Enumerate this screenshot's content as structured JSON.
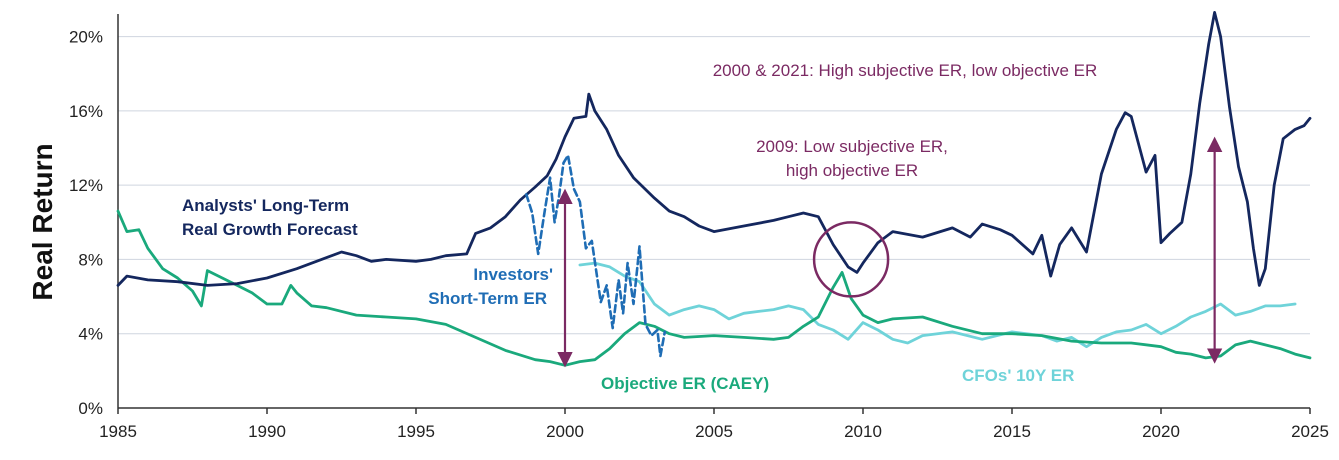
{
  "chart_data": {
    "type": "line",
    "ylabel": "Real Return",
    "xlim": [
      1985,
      2025
    ],
    "ylim": [
      0,
      21
    ],
    "x_ticks": [
      "1985",
      "1990",
      "1995",
      "2000",
      "2005",
      "2010",
      "2015",
      "2020",
      "2025"
    ],
    "y_ticks": [
      "0%",
      "4%",
      "8%",
      "12%",
      "16%",
      "20%"
    ],
    "grid": "horizontal",
    "colors": {
      "analysts": "#14275e",
      "investors": "#1f6db5",
      "caey": "#1aa97c",
      "cfo": "#6fd3d9",
      "annotation": "#7b2a63"
    },
    "series": [
      {
        "key": "analysts",
        "name": "Analysts' Long-Term Real Growth Forecast",
        "points": [
          [
            1985,
            6.6
          ],
          [
            1985.3,
            7.1
          ],
          [
            1986,
            6.9
          ],
          [
            1987,
            6.8
          ],
          [
            1988,
            6.6
          ],
          [
            1989,
            6.7
          ],
          [
            1990,
            7.0
          ],
          [
            1991,
            7.5
          ],
          [
            1992,
            8.1
          ],
          [
            1992.5,
            8.4
          ],
          [
            1993,
            8.2
          ],
          [
            1993.5,
            7.9
          ],
          [
            1994,
            8.0
          ],
          [
            1995,
            7.9
          ],
          [
            1995.5,
            8.0
          ],
          [
            1996,
            8.2
          ],
          [
            1996.7,
            8.3
          ],
          [
            1997,
            9.4
          ],
          [
            1997.5,
            9.7
          ],
          [
            1998,
            10.3
          ],
          [
            1998.5,
            11.2
          ],
          [
            1999,
            11.9
          ],
          [
            1999.4,
            12.5
          ],
          [
            1999.7,
            13.4
          ],
          [
            2000,
            14.6
          ],
          [
            2000.3,
            15.6
          ],
          [
            2000.7,
            15.7
          ],
          [
            2000.8,
            16.9
          ],
          [
            2001,
            16.0
          ],
          [
            2001.4,
            15.0
          ],
          [
            2001.8,
            13.6
          ],
          [
            2002.3,
            12.4
          ],
          [
            2003,
            11.3
          ],
          [
            2003.5,
            10.6
          ],
          [
            2004,
            10.3
          ],
          [
            2004.5,
            9.8
          ],
          [
            2005,
            9.5
          ],
          [
            2006,
            9.8
          ],
          [
            2007,
            10.1
          ],
          [
            2007.5,
            10.3
          ],
          [
            2008,
            10.5
          ],
          [
            2008.5,
            10.3
          ],
          [
            2009,
            8.8
          ],
          [
            2009.5,
            7.6
          ],
          [
            2009.8,
            7.3
          ],
          [
            2010,
            7.8
          ],
          [
            2010.5,
            8.9
          ],
          [
            2011,
            9.5
          ],
          [
            2012,
            9.2
          ],
          [
            2013,
            9.7
          ],
          [
            2013.6,
            9.2
          ],
          [
            2014,
            9.9
          ],
          [
            2014.6,
            9.6
          ],
          [
            2015,
            9.3
          ],
          [
            2015.7,
            8.3
          ],
          [
            2016,
            9.3
          ],
          [
            2016.3,
            7.1
          ],
          [
            2016.6,
            8.8
          ],
          [
            2017,
            9.7
          ],
          [
            2017.5,
            8.4
          ],
          [
            2018,
            12.6
          ],
          [
            2018.5,
            15.0
          ],
          [
            2018.8,
            15.9
          ],
          [
            2019,
            15.7
          ],
          [
            2019.5,
            12.7
          ],
          [
            2019.8,
            13.6
          ],
          [
            2020,
            8.9
          ],
          [
            2020.3,
            9.4
          ],
          [
            2020.7,
            10.0
          ],
          [
            2021,
            12.6
          ],
          [
            2021.3,
            16.4
          ],
          [
            2021.6,
            19.6
          ],
          [
            2021.8,
            21.3
          ],
          [
            2022,
            20.0
          ],
          [
            2022.3,
            16.2
          ],
          [
            2022.6,
            13.0
          ],
          [
            2022.9,
            11.1
          ],
          [
            2023.1,
            8.6
          ],
          [
            2023.3,
            6.6
          ],
          [
            2023.5,
            7.5
          ],
          [
            2023.8,
            12.0
          ],
          [
            2024.1,
            14.5
          ],
          [
            2024.5,
            15.0
          ],
          [
            2024.8,
            15.2
          ],
          [
            2025,
            15.6
          ]
        ]
      },
      {
        "key": "investors",
        "name": "Investors' Short-Term ER",
        "dashed": true,
        "points": [
          [
            1998.7,
            11.5
          ],
          [
            1998.9,
            10.5
          ],
          [
            1999.1,
            8.3
          ],
          [
            1999.3,
            10.4
          ],
          [
            1999.5,
            12.4
          ],
          [
            1999.65,
            10.0
          ],
          [
            1999.8,
            11.4
          ],
          [
            1999.95,
            13.2
          ],
          [
            2000.1,
            13.6
          ],
          [
            2000.3,
            11.8
          ],
          [
            2000.5,
            11.1
          ],
          [
            2000.7,
            8.6
          ],
          [
            2000.9,
            9.0
          ],
          [
            2001.2,
            5.7
          ],
          [
            2001.4,
            6.6
          ],
          [
            2001.6,
            4.3
          ],
          [
            2001.8,
            6.9
          ],
          [
            2001.95,
            5.1
          ],
          [
            2002.1,
            7.8
          ],
          [
            2002.3,
            5.6
          ],
          [
            2002.5,
            8.7
          ],
          [
            2002.7,
            4.5
          ],
          [
            2002.9,
            3.9
          ],
          [
            2003.1,
            4.2
          ],
          [
            2003.2,
            2.8
          ],
          [
            2003.35,
            4.1
          ]
        ]
      },
      {
        "key": "caey",
        "name": "Objective ER (CAEY)",
        "points": [
          [
            1985,
            10.6
          ],
          [
            1985.3,
            9.5
          ],
          [
            1985.7,
            9.6
          ],
          [
            1986,
            8.6
          ],
          [
            1986.5,
            7.5
          ],
          [
            1987,
            7.0
          ],
          [
            1987.5,
            6.3
          ],
          [
            1987.8,
            5.5
          ],
          [
            1988,
            7.4
          ],
          [
            1988.5,
            7.0
          ],
          [
            1989,
            6.6
          ],
          [
            1989.5,
            6.2
          ],
          [
            1990,
            5.6
          ],
          [
            1990.5,
            5.6
          ],
          [
            1990.8,
            6.6
          ],
          [
            1991,
            6.2
          ],
          [
            1991.5,
            5.5
          ],
          [
            1992,
            5.4
          ],
          [
            1993,
            5.0
          ],
          [
            1994,
            4.9
          ],
          [
            1995,
            4.8
          ],
          [
            1996,
            4.5
          ],
          [
            1997,
            3.8
          ],
          [
            1998,
            3.1
          ],
          [
            1999,
            2.6
          ],
          [
            1999.5,
            2.5
          ],
          [
            2000,
            2.3
          ],
          [
            2000.5,
            2.5
          ],
          [
            2001,
            2.6
          ],
          [
            2001.5,
            3.2
          ],
          [
            2002,
            4.0
          ],
          [
            2002.5,
            4.6
          ],
          [
            2003,
            4.4
          ],
          [
            2003.5,
            4.0
          ],
          [
            2004,
            3.8
          ],
          [
            2005,
            3.9
          ],
          [
            2006,
            3.8
          ],
          [
            2007,
            3.7
          ],
          [
            2007.5,
            3.8
          ],
          [
            2008,
            4.4
          ],
          [
            2008.5,
            4.9
          ],
          [
            2009,
            6.5
          ],
          [
            2009.3,
            7.3
          ],
          [
            2009.6,
            5.9
          ],
          [
            2010,
            5.0
          ],
          [
            2010.5,
            4.6
          ],
          [
            2011,
            4.8
          ],
          [
            2012,
            4.9
          ],
          [
            2013,
            4.4
          ],
          [
            2014,
            4.0
          ],
          [
            2015,
            4.0
          ],
          [
            2016,
            3.9
          ],
          [
            2017,
            3.6
          ],
          [
            2018,
            3.5
          ],
          [
            2019,
            3.5
          ],
          [
            2020,
            3.3
          ],
          [
            2020.5,
            3.0
          ],
          [
            2021,
            2.9
          ],
          [
            2021.5,
            2.7
          ],
          [
            2022,
            2.8
          ],
          [
            2022.5,
            3.4
          ],
          [
            2023,
            3.6
          ],
          [
            2023.5,
            3.4
          ],
          [
            2024,
            3.2
          ],
          [
            2024.5,
            2.9
          ],
          [
            2025,
            2.7
          ]
        ]
      },
      {
        "key": "cfo",
        "name": "CFOs' 10Y ER",
        "points": [
          [
            2000.5,
            7.7
          ],
          [
            2001,
            7.8
          ],
          [
            2001.5,
            7.6
          ],
          [
            2002,
            7.1
          ],
          [
            2002.5,
            6.8
          ],
          [
            2003,
            5.6
          ],
          [
            2003.5,
            5.0
          ],
          [
            2004,
            5.3
          ],
          [
            2004.5,
            5.5
          ],
          [
            2005,
            5.3
          ],
          [
            2005.5,
            4.8
          ],
          [
            2006,
            5.1
          ],
          [
            2006.5,
            5.2
          ],
          [
            2007,
            5.3
          ],
          [
            2007.5,
            5.5
          ],
          [
            2008,
            5.3
          ],
          [
            2008.5,
            4.5
          ],
          [
            2009,
            4.2
          ],
          [
            2009.5,
            3.7
          ],
          [
            2010,
            4.6
          ],
          [
            2010.5,
            4.2
          ],
          [
            2011,
            3.7
          ],
          [
            2011.5,
            3.5
          ],
          [
            2012,
            3.9
          ],
          [
            2013,
            4.1
          ],
          [
            2014,
            3.7
          ],
          [
            2015,
            4.1
          ],
          [
            2016,
            3.9
          ],
          [
            2016.5,
            3.6
          ],
          [
            2017,
            3.8
          ],
          [
            2017.5,
            3.3
          ],
          [
            2018,
            3.8
          ],
          [
            2018.5,
            4.1
          ],
          [
            2019,
            4.2
          ],
          [
            2019.5,
            4.5
          ],
          [
            2020,
            4.0
          ],
          [
            2020.5,
            4.4
          ],
          [
            2021,
            4.9
          ],
          [
            2021.5,
            5.2
          ],
          [
            2022,
            5.6
          ],
          [
            2022.5,
            5.0
          ],
          [
            2023,
            5.2
          ],
          [
            2023.5,
            5.5
          ],
          [
            2024,
            5.5
          ],
          [
            2024.5,
            5.6
          ]
        ]
      }
    ],
    "annotations": [
      {
        "key": "a2000",
        "text": "2000 & 2021: High subjective ER, low objective ER"
      },
      {
        "key": "a2009_1",
        "text": "2009: Low subjective ER,"
      },
      {
        "key": "a2009_2",
        "text": "high objective ER"
      }
    ],
    "series_labels": [
      {
        "key": "analysts1",
        "text": "Analysts' Long-Term"
      },
      {
        "key": "analysts2",
        "text": "Real Growth Forecast"
      },
      {
        "key": "investors1",
        "text": "Investors'"
      },
      {
        "key": "investors2",
        "text": "Short-Term ER"
      },
      {
        "key": "caey",
        "text": "Objective ER (CAEY)"
      },
      {
        "key": "cfo",
        "text": "CFOs' 10Y ER"
      }
    ],
    "arrows": [
      {
        "x": 2000,
        "y_from": 2.6,
        "y_to": 11.4
      },
      {
        "x": 2021.8,
        "y_from": 2.8,
        "y_to": 14.2
      }
    ],
    "circle": {
      "x": 2009.6,
      "y": 8.0
    }
  }
}
